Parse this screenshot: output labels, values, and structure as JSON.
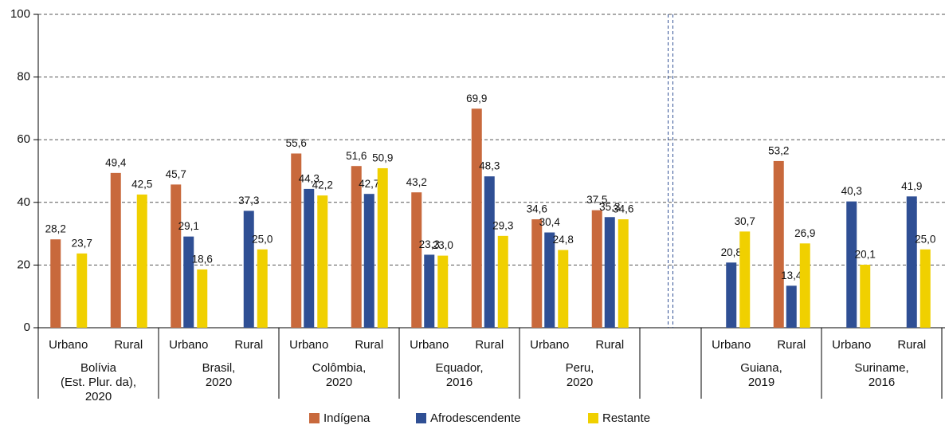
{
  "chart_data": {
    "type": "bar",
    "groups": [
      {
        "name": [
          "Bolívia",
          "(Est. Plur. da),",
          "2020"
        ],
        "categories": [
          "Urbano",
          "Rural"
        ]
      },
      {
        "name": [
          "Brasil,",
          "2020"
        ],
        "categories": [
          "Urbano",
          "Rural"
        ]
      },
      {
        "name": [
          "Colômbia,",
          "2020"
        ],
        "categories": [
          "Urbano",
          "Rural"
        ]
      },
      {
        "name": [
          "Equador,",
          "2016"
        ],
        "categories": [
          "Urbano",
          "Rural"
        ]
      },
      {
        "name": [
          "Peru,",
          "2020"
        ],
        "categories": [
          "Urbano",
          "Rural"
        ]
      },
      {
        "name": [
          "Guiana,",
          "2019"
        ],
        "categories": [
          "Urbano",
          "Rural"
        ]
      },
      {
        "name": [
          "Suriname,",
          "2016"
        ],
        "categories": [
          "Urbano",
          "Rural"
        ]
      }
    ],
    "series": [
      {
        "name": "Indígena",
        "color": "#c8693c",
        "values": [
          28.2,
          49.4,
          45.7,
          null,
          55.6,
          51.6,
          43.2,
          69.9,
          34.6,
          37.5,
          null,
          53.2,
          null,
          null
        ],
        "value_labels": [
          "28,2",
          "49,4",
          "45,7",
          null,
          "55,6",
          "51,6",
          "43,2",
          "69,9",
          "34,6",
          "37,5",
          null,
          "53,2",
          null,
          null
        ]
      },
      {
        "name": "Afrodescendente",
        "color": "#2f4f94",
        "values": [
          null,
          null,
          29.1,
          37.3,
          44.3,
          42.7,
          23.3,
          48.3,
          30.4,
          35.3,
          20.8,
          13.4,
          40.3,
          41.9
        ],
        "value_labels": [
          null,
          null,
          "29,1",
          "37,3",
          "44,3",
          "42,7",
          "23,3",
          "48,3",
          "30,4",
          "35,3",
          "20,8",
          "13,4",
          "40,3",
          "41,9"
        ]
      },
      {
        "name": "Restante",
        "color": "#f0d000",
        "values": [
          23.7,
          42.5,
          18.6,
          25.0,
          42.2,
          50.9,
          23.0,
          29.3,
          24.8,
          34.6,
          30.7,
          26.9,
          20.1,
          25.0
        ],
        "value_labels": [
          "23,7",
          "42,5",
          "18,6",
          "25,0",
          "42,2",
          "50,9",
          "23,0",
          "29,3",
          "24,8",
          "34,6",
          "30,7",
          "26,9",
          "20,1",
          "25,0"
        ]
      }
    ],
    "ylim": [
      0,
      100
    ],
    "yticks": [
      0,
      20,
      40,
      60,
      80,
      100
    ],
    "grid": true
  }
}
